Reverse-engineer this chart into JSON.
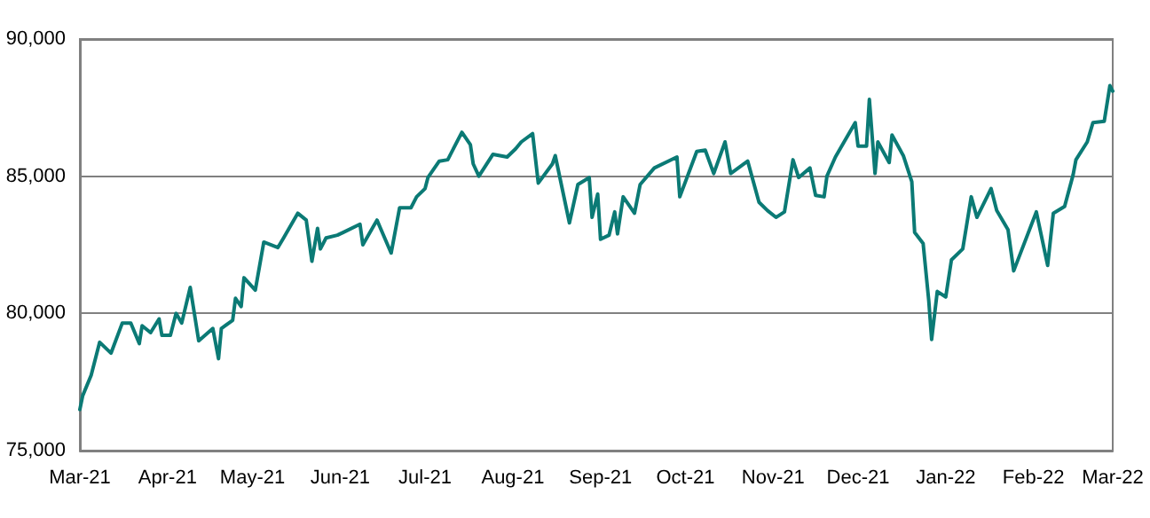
{
  "chart_data": {
    "type": "line",
    "color": "#0b7a75",
    "marker": "none",
    "line_style": "solid",
    "grid": "y",
    "xlim": [
      "2021-03-01",
      "2022-03-01"
    ],
    "xticks": [
      {
        "value": "2021-03-01",
        "label": "Mar-21"
      },
      {
        "value": "2021-04-01",
        "label": "Apr-21"
      },
      {
        "value": "2021-05-01",
        "label": "May-21"
      },
      {
        "value": "2021-06-01",
        "label": "Jun-21"
      },
      {
        "value": "2021-07-01",
        "label": "Jul-21"
      },
      {
        "value": "2021-08-01",
        "label": "Aug-21"
      },
      {
        "value": "2021-09-01",
        "label": "Sep-21"
      },
      {
        "value": "2021-10-01",
        "label": "Oct-21"
      },
      {
        "value": "2021-11-01",
        "label": "Nov-21"
      },
      {
        "value": "2021-12-01",
        "label": "Dec-21"
      },
      {
        "value": "2022-01-01",
        "label": "Jan-22"
      },
      {
        "value": "2022-02-01",
        "label": "Feb-22"
      },
      {
        "value": "2022-03-01",
        "label": "Mar-22"
      }
    ],
    "ylim": [
      75000,
      90000
    ],
    "yticks": [
      {
        "value": 75000,
        "label": "75,000"
      },
      {
        "value": 80000,
        "label": "80,000"
      },
      {
        "value": 85000,
        "label": "85,000"
      },
      {
        "value": 90000,
        "label": "90,000"
      }
    ],
    "x": [
      "2021-03-01",
      "2021-03-02",
      "2021-03-05",
      "2021-03-08",
      "2021-03-12",
      "2021-03-16",
      "2021-03-19",
      "2021-03-22",
      "2021-03-23",
      "2021-03-26",
      "2021-03-29",
      "2021-03-30",
      "2021-04-02",
      "2021-04-04",
      "2021-04-06",
      "2021-04-09",
      "2021-04-12",
      "2021-04-17",
      "2021-04-19",
      "2021-04-20",
      "2021-04-24",
      "2021-04-25",
      "2021-04-27",
      "2021-04-28",
      "2021-05-02",
      "2021-05-05",
      "2021-05-10",
      "2021-05-12",
      "2021-05-17",
      "2021-05-20",
      "2021-05-22",
      "2021-05-24",
      "2021-05-25",
      "2021-05-27",
      "2021-05-31",
      "2021-06-02",
      "2021-06-08",
      "2021-06-09",
      "2021-06-14",
      "2021-06-19",
      "2021-06-22",
      "2021-06-26",
      "2021-06-28",
      "2021-07-01",
      "2021-07-02",
      "2021-07-06",
      "2021-07-09",
      "2021-07-14",
      "2021-07-17",
      "2021-07-18",
      "2021-07-20",
      "2021-07-25",
      "2021-07-30",
      "2021-08-02",
      "2021-08-04",
      "2021-08-08",
      "2021-08-10",
      "2021-08-15",
      "2021-08-16",
      "2021-08-21",
      "2021-08-24",
      "2021-08-28",
      "2021-08-29",
      "2021-08-31",
      "2021-09-01",
      "2021-09-04",
      "2021-09-06",
      "2021-09-07",
      "2021-09-09",
      "2021-09-13",
      "2021-09-15",
      "2021-09-20",
      "2021-09-28",
      "2021-09-29",
      "2021-10-05",
      "2021-10-08",
      "2021-10-11",
      "2021-10-15",
      "2021-10-17",
      "2021-10-23",
      "2021-10-27",
      "2021-10-30",
      "2021-11-02",
      "2021-11-05",
      "2021-11-08",
      "2021-11-10",
      "2021-11-14",
      "2021-11-16",
      "2021-11-19",
      "2021-11-20",
      "2021-11-23",
      "2021-11-30",
      "2021-12-01",
      "2021-12-04",
      "2021-12-05",
      "2021-12-07",
      "2021-12-08",
      "2021-12-12",
      "2021-12-13",
      "2021-12-17",
      "2021-12-20",
      "2021-12-21",
      "2021-12-24",
      "2021-12-26",
      "2021-12-27",
      "2021-12-29",
      "2022-01-01",
      "2022-01-03",
      "2022-01-07",
      "2022-01-10",
      "2022-01-12",
      "2022-01-17",
      "2022-01-19",
      "2022-01-23",
      "2022-01-25",
      "2022-02-02",
      "2022-02-06",
      "2022-02-08",
      "2022-02-12",
      "2022-02-15",
      "2022-02-16",
      "2022-02-20",
      "2022-02-22",
      "2022-02-26",
      "2022-02-28",
      "2022-03-01"
    ],
    "values": [
      76500,
      77000,
      77750,
      78950,
      78550,
      79650,
      79650,
      78900,
      79550,
      79300,
      79800,
      79200,
      79200,
      80000,
      79650,
      80950,
      79000,
      79450,
      78350,
      79450,
      79750,
      80550,
      80250,
      81300,
      80850,
      82600,
      82400,
      82750,
      83650,
      83400,
      81900,
      83100,
      82350,
      82750,
      82850,
      82950,
      83250,
      82500,
      83400,
      82200,
      83850,
      83850,
      84250,
      84550,
      84950,
      85550,
      85600,
      86600,
      86150,
      85450,
      85000,
      85800,
      85700,
      86000,
      86250,
      86550,
      84750,
      85450,
      85750,
      83300,
      84700,
      84950,
      83500,
      84350,
      82700,
      82850,
      83700,
      82900,
      84250,
      83650,
      84700,
      85300,
      85700,
      84250,
      85900,
      85950,
      85100,
      86250,
      85100,
      85550,
      84050,
      83750,
      83500,
      83700,
      85600,
      84950,
      85300,
      84300,
      84250,
      85000,
      85700,
      86950,
      86100,
      86100,
      87800,
      85100,
      86250,
      85500,
      86500,
      85750,
      84800,
      82950,
      82550,
      80450,
      79050,
      80800,
      80600,
      81950,
      82350,
      84250,
      83500,
      84550,
      83750,
      83050,
      81550,
      83700,
      81750,
      83650,
      83900,
      85050,
      85600,
      86250,
      86950,
      87000,
      88300,
      88100
    ]
  }
}
